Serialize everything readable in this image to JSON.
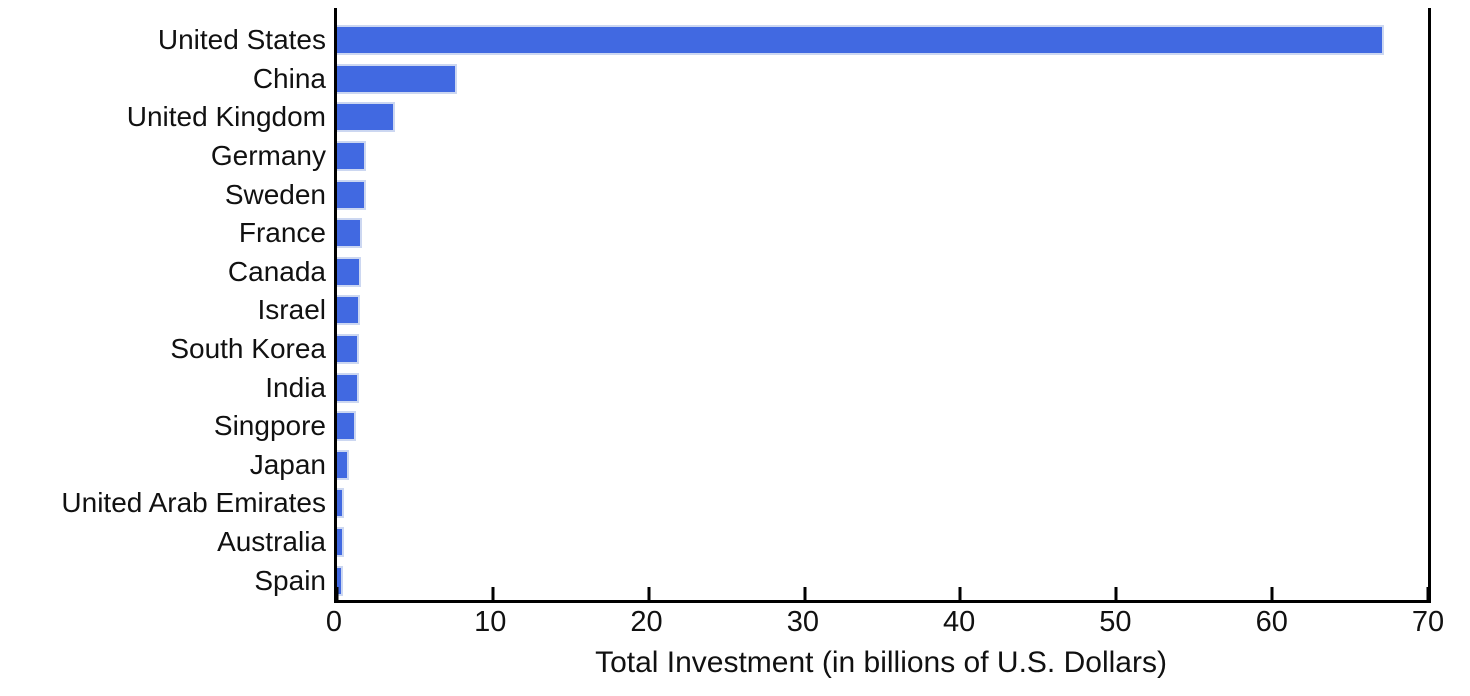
{
  "chart_data": {
    "type": "bar",
    "orientation": "horizontal",
    "title": "",
    "xlabel": "Total Investment (in billions of U.S. Dollars)",
    "ylabel": "",
    "categories": [
      "United States",
      "China",
      "United Kingdom",
      "Germany",
      "Sweden",
      "France",
      "Canada",
      "Israel",
      "South Korea",
      "India",
      "Singpore",
      "Japan",
      "United Arab Emirates",
      "Australia",
      "Spain"
    ],
    "values": [
      67.2,
      7.7,
      3.7,
      1.85,
      1.85,
      1.62,
      1.56,
      1.45,
      1.41,
      1.39,
      1.2,
      0.75,
      0.45,
      0.48,
      0.4
    ],
    "xlim": [
      0,
      70
    ],
    "xticks": [
      0,
      10,
      20,
      30,
      40,
      50,
      60,
      70
    ],
    "grid": false,
    "legend": "none",
    "bar_color": "#4169E1",
    "bar_edge_color": "#ccd7f1",
    "axis_color": "#000000",
    "text_color": "#111111",
    "background_color": "#ffffff"
  }
}
